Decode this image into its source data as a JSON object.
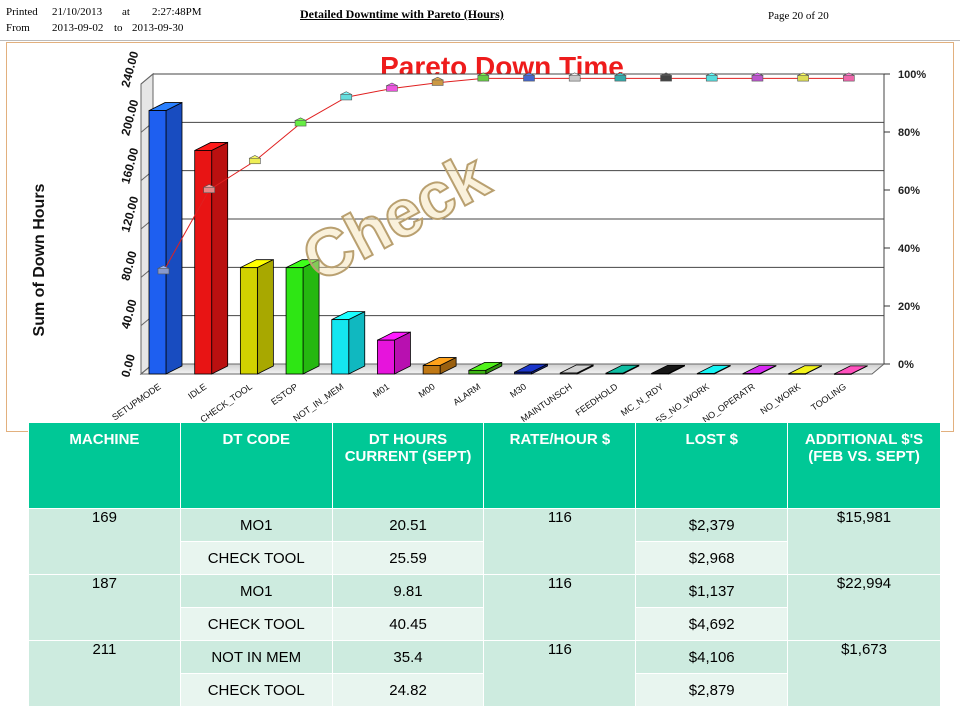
{
  "header": {
    "printed_label": "Printed",
    "printed_date": "21/10/2013",
    "at_label": "at",
    "printed_time": "2:27:48PM",
    "from_label": "From",
    "from_date": "2013-09-02",
    "to_label": "to",
    "to_date": "2013-09-30",
    "report_title": "Detailed Downtime with Pareto (Hours)",
    "page": "Page 20 of 20"
  },
  "watermark": "Check",
  "chart_data": {
    "type": "bar",
    "title": "Pareto Down Time",
    "ylabel": "Sum of Down Hours",
    "ylim": [
      0,
      240
    ],
    "yticks": [
      "0.00",
      "40.00",
      "80.00",
      "120.00",
      "160.00",
      "200.00",
      "240.00"
    ],
    "y2ticks": [
      "0%",
      "20%",
      "40%",
      "60%",
      "80%",
      "100%"
    ],
    "grid": true,
    "categories": [
      "SETUPMODE",
      "IDLE",
      "CHECK_TOOL",
      "ESTOP",
      "NOT_IN_MEM",
      "M01",
      "M00",
      "ALARM",
      "M30",
      "MAINTUNSCH",
      "FEEDHOLD",
      "MC_N_RDY",
      "5S_NO_WORK",
      "NO_OPERATR",
      "NO_WORK",
      "TOOLING"
    ],
    "values": [
      218,
      185,
      88,
      88,
      45,
      28,
      7,
      3,
      1.5,
      0.8,
      0.6,
      0.5,
      0.4,
      0.3,
      0.2,
      0.1
    ],
    "cumulative_percent": [
      32,
      60,
      70,
      83,
      92,
      95,
      97,
      98.5,
      98.5,
      98.5,
      98.5,
      98.5,
      98.5,
      98.5,
      98.5,
      98.5
    ],
    "bar_colors": [
      "#1e5ff0",
      "#e81414",
      "#d2d200",
      "#2ee614",
      "#14e6f0",
      "#e614dc",
      "#c07814",
      "#3cb414",
      "#142896",
      "#9a9a9a",
      "#0a8c78",
      "#101010",
      "#10b4b4",
      "#a01eb4",
      "#b4b414",
      "#dc3c8c"
    ],
    "marker_colors": [
      "#8899cc",
      "#e88888",
      "#eeee55",
      "#66ee44",
      "#66dddd",
      "#ee55dd",
      "#cc9944",
      "#66cc44",
      "#4466cc",
      "#c8c8c8",
      "#33aaaa",
      "#444444",
      "#55dddd",
      "#bb55cc",
      "#dddd55",
      "#ee66aa"
    ]
  },
  "table": {
    "headers": [
      "MACHINE",
      "DT CODE",
      "DT HOURS CURRENT (SEPT)",
      "RATE/HOUR $",
      "LOST $",
      "ADDITIONAL $'S (FEB VS. SEPT)"
    ],
    "groups": [
      {
        "machine": "169",
        "rate": "116",
        "additional": "$15,981",
        "rows": [
          {
            "code": "MO1",
            "hours": "20.51",
            "lost": "$2,379"
          },
          {
            "code": "CHECK TOOL",
            "hours": "25.59",
            "lost": "$2,968"
          }
        ]
      },
      {
        "machine": "187",
        "rate": "116",
        "additional": "$22,994",
        "rows": [
          {
            "code": "MO1",
            "hours": "9.81",
            "lost": "$1,137"
          },
          {
            "code": "CHECK TOOL",
            "hours": "40.45",
            "lost": "$4,692"
          }
        ]
      },
      {
        "machine": "211",
        "rate": "116",
        "additional": "$1,673",
        "rows": [
          {
            "code": "NOT IN MEM",
            "hours": "35.4",
            "lost": "$4,106"
          },
          {
            "code": "CHECK TOOL",
            "hours": "24.82",
            "lost": "$2,879"
          }
        ]
      }
    ]
  }
}
